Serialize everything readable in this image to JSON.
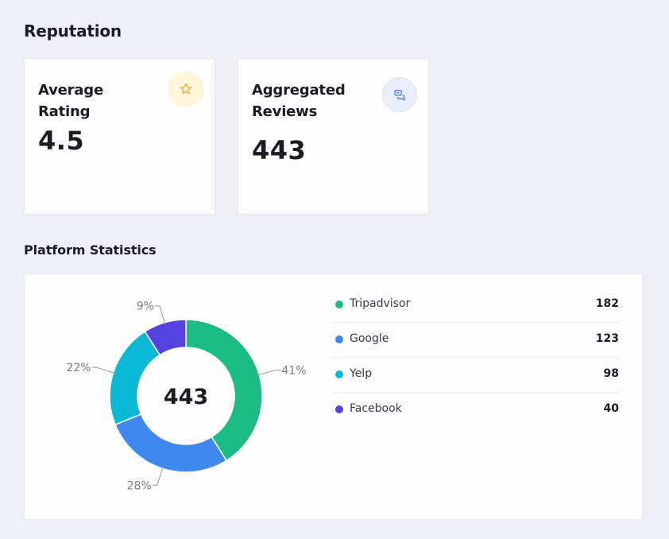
{
  "page_title": "Reputation",
  "cards": {
    "average_rating": {
      "title": "Average Rating",
      "value": "4.5",
      "icon": "star-icon",
      "accent": "#e3a93b"
    },
    "aggregated_reviews": {
      "title": "Aggregated Reviews",
      "value": "443",
      "icon": "chat-bubbles-icon",
      "accent": "#3b74c9"
    }
  },
  "platform_statistics": {
    "title": "Platform Statistics",
    "center_total": "443",
    "items": [
      {
        "label": "Tripadvisor",
        "value": "182",
        "color": "#1bbc84"
      },
      {
        "label": "Google",
        "value": "123",
        "color": "#3f88ee"
      },
      {
        "label": "Yelp",
        "value": "98",
        "color": "#0bb8d4"
      },
      {
        "label": "Facebook",
        "value": "40",
        "color": "#5642e0"
      }
    ]
  },
  "chart_data": {
    "type": "pie",
    "categories": [
      "Tripadvisor",
      "Google",
      "Yelp",
      "Facebook"
    ],
    "values": [
      182,
      123,
      98,
      40
    ],
    "percent_labels": [
      "41%",
      "28%",
      "22%",
      "9%"
    ],
    "colors": [
      "#1bbc84",
      "#3f88ee",
      "#0bb8d4",
      "#5642e0"
    ],
    "center_label": "443"
  }
}
